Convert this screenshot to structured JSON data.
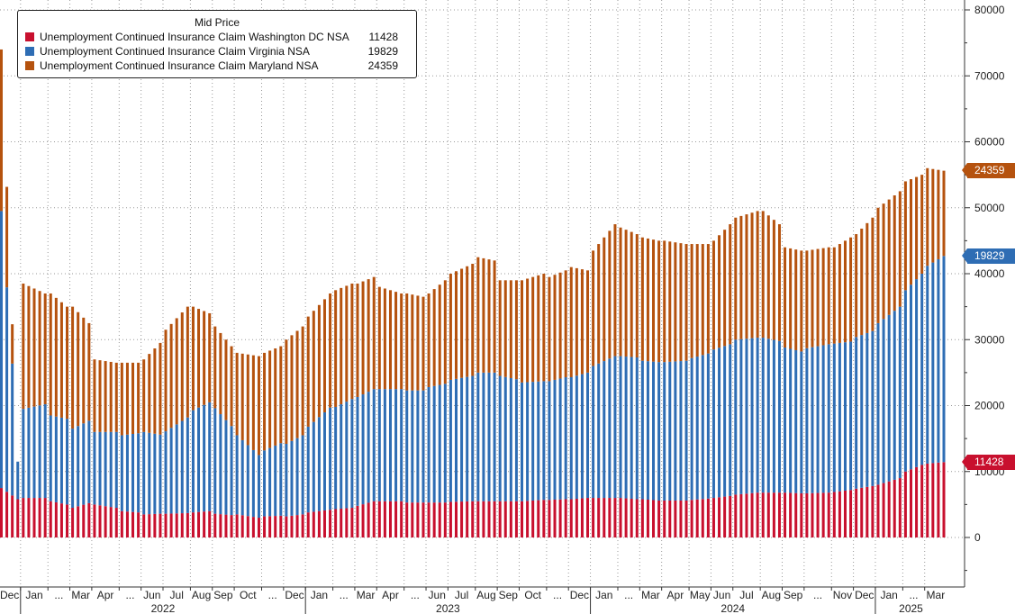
{
  "legend": {
    "title": "Mid Price",
    "entries": [
      {
        "label": "Unemployment Continued Insurance Claim Washington DC NSA",
        "value": "11428",
        "color": "#c8102e"
      },
      {
        "label": "Unemployment Continued Insurance Claim Virginia NSA",
        "value": "19829",
        "color": "#2e6db4"
      },
      {
        "label": "Unemployment Continued Insurance Claim Maryland NSA",
        "value": "24359",
        "color": "#b5520e"
      }
    ]
  },
  "chart_data": {
    "type": "bar",
    "stacked": true,
    "x_tick_labels": [
      "Dec",
      "Jan",
      "...",
      "Mar",
      "Apr",
      "...",
      "Jun",
      "Jul",
      "Aug",
      "Sep",
      "Oct",
      "...",
      "Dec",
      "Jan",
      "...",
      "Mar",
      "Apr",
      "...",
      "Jun",
      "Jul",
      "Aug",
      "Sep",
      "Oct",
      "...",
      "Dec",
      "Jan",
      "...",
      "Mar",
      "Apr",
      "May",
      "Jun",
      "Jul",
      "Aug",
      "Sep",
      "...",
      "Nov",
      "Dec",
      "Jan",
      "...",
      "Mar"
    ],
    "year_labels": [
      "2022",
      "2023",
      "2024",
      "2025"
    ],
    "y_ticks": [
      "80000",
      "70000",
      "60000",
      "50000",
      "40000",
      "30000",
      "20000",
      "10000",
      "0"
    ],
    "ylim": [
      -7000,
      81000
    ],
    "grid": true,
    "legend_position": "top-left",
    "y_axis_side": "right",
    "last_value_badges": [
      "24359",
      "19829",
      "11428"
    ],
    "months": [
      {
        "label": "Dec",
        "n": 4,
        "dc": [
          7500,
          5800
        ],
        "va": [
          42000,
          9000
        ],
        "total": [
          74000,
          11500
        ]
      },
      {
        "label": "Jan",
        "n": 5,
        "dc": [
          6000,
          6000
        ],
        "va": [
          13500,
          14200
        ],
        "total": [
          38500,
          37000
        ]
      },
      {
        "label": "Feb",
        "n": 4,
        "dc": [
          5500,
          5000
        ],
        "va": [
          13000,
          13000
        ],
        "total": [
          37000,
          35000
        ]
      },
      {
        "label": "Mar",
        "n": 4,
        "dc": [
          4500,
          5200
        ],
        "va": [
          12000,
          12500
        ],
        "total": [
          35000,
          32500
        ]
      },
      {
        "label": "Apr",
        "n": 5,
        "dc": [
          5000,
          4500
        ],
        "va": [
          11000,
          11500
        ],
        "total": [
          27000,
          26500
        ]
      },
      {
        "label": "May",
        "n": 4,
        "dc": [
          4000,
          3800
        ],
        "va": [
          11500,
          12000
        ],
        "total": [
          26500,
          26500
        ]
      },
      {
        "label": "Jun",
        "n": 4,
        "dc": [
          3500,
          3600
        ],
        "va": [
          12500,
          12000
        ],
        "total": [
          27000,
          29500
        ]
      },
      {
        "label": "Jul",
        "n": 5,
        "dc": [
          3600,
          3700
        ],
        "va": [
          12500,
          14500
        ],
        "total": [
          31500,
          35000
        ]
      },
      {
        "label": "Aug",
        "n": 4,
        "dc": [
          3800,
          4000
        ],
        "va": [
          15500,
          16500
        ],
        "total": [
          35000,
          34000
        ]
      },
      {
        "label": "Sep",
        "n": 4,
        "dc": [
          3600,
          3400
        ],
        "va": [
          16000,
          13500
        ],
        "total": [
          32000,
          29000
        ]
      },
      {
        "label": "Oct",
        "n": 5,
        "dc": [
          3500,
          3000
        ],
        "va": [
          12000,
          9500
        ],
        "total": [
          28000,
          27500
        ]
      },
      {
        "label": "Nov",
        "n": 4,
        "dc": [
          3200,
          3300
        ],
        "va": [
          10000,
          11000
        ],
        "total": [
          28000,
          29000
        ]
      },
      {
        "label": "Dec",
        "n": 4,
        "dc": [
          3200,
          3500
        ],
        "va": [
          11000,
          12000
        ],
        "total": [
          30000,
          32000
        ]
      },
      {
        "label": "Jan",
        "n": 5,
        "dc": [
          3800,
          4200
        ],
        "va": [
          13000,
          15500
        ],
        "total": [
          33500,
          37000
        ]
      },
      {
        "label": "Feb",
        "n": 4,
        "dc": [
          4300,
          4500
        ],
        "va": [
          15500,
          16500
        ],
        "total": [
          37500,
          38500
        ]
      },
      {
        "label": "Mar",
        "n": 4,
        "dc": [
          4800,
          5500
        ],
        "va": [
          16500,
          17000
        ],
        "total": [
          38500,
          39500
        ]
      },
      {
        "label": "Apr",
        "n": 5,
        "dc": [
          5500,
          5500
        ],
        "va": [
          17000,
          17000
        ],
        "total": [
          38000,
          37000
        ]
      },
      {
        "label": "May",
        "n": 4,
        "dc": [
          5300,
          5300
        ],
        "va": [
          17000,
          17000
        ],
        "total": [
          37000,
          36500
        ]
      },
      {
        "label": "Jun",
        "n": 4,
        "dc": [
          5300,
          5300
        ],
        "va": [
          17500,
          18000
        ],
        "total": [
          37000,
          39000
        ]
      },
      {
        "label": "Jul",
        "n": 5,
        "dc": [
          5400,
          5500
        ],
        "va": [
          18500,
          19000
        ],
        "total": [
          40000,
          41500
        ]
      },
      {
        "label": "Aug",
        "n": 4,
        "dc": [
          5500,
          5500
        ],
        "va": [
          19500,
          19500
        ],
        "total": [
          42500,
          42000
        ]
      },
      {
        "label": "Sep",
        "n": 4,
        "dc": [
          5500,
          5500
        ],
        "va": [
          19000,
          18500
        ],
        "total": [
          39000,
          39000
        ]
      },
      {
        "label": "Oct",
        "n": 5,
        "dc": [
          5500,
          5700
        ],
        "va": [
          18000,
          18000
        ],
        "total": [
          39000,
          40000
        ]
      },
      {
        "label": "Nov",
        "n": 4,
        "dc": [
          5700,
          5800
        ],
        "va": [
          18000,
          18500
        ],
        "total": [
          39500,
          40500
        ]
      },
      {
        "label": "Dec",
        "n": 4,
        "dc": [
          5800,
          6000
        ],
        "va": [
          18500,
          19000
        ],
        "total": [
          41000,
          40500
        ]
      },
      {
        "label": "Jan",
        "n": 5,
        "dc": [
          6000,
          6000
        ],
        "va": [
          20000,
          21500
        ],
        "total": [
          43500,
          47500
        ]
      },
      {
        "label": "Feb",
        "n": 4,
        "dc": [
          6000,
          5800
        ],
        "va": [
          21500,
          21500
        ],
        "total": [
          47000,
          46000
        ]
      },
      {
        "label": "Mar",
        "n": 4,
        "dc": [
          5800,
          5600
        ],
        "va": [
          21000,
          21000
        ],
        "total": [
          45500,
          45000
        ]
      },
      {
        "label": "Apr",
        "n": 5,
        "dc": [
          5600,
          5600
        ],
        "va": [
          21000,
          21200
        ],
        "total": [
          45000,
          44500
        ]
      },
      {
        "label": "May",
        "n": 4,
        "dc": [
          5700,
          5900
        ],
        "va": [
          21500,
          22000
        ],
        "total": [
          44500,
          44500
        ]
      },
      {
        "label": "Jun",
        "n": 4,
        "dc": [
          6000,
          6300
        ],
        "va": [
          22500,
          23000
        ],
        "total": [
          45000,
          47500
        ]
      },
      {
        "label": "Jul",
        "n": 5,
        "dc": [
          6500,
          6800
        ],
        "va": [
          23500,
          23500
        ],
        "total": [
          48500,
          49500
        ]
      },
      {
        "label": "Aug",
        "n": 4,
        "dc": [
          6800,
          6800
        ],
        "va": [
          23500,
          23000
        ],
        "total": [
          49500,
          47500
        ]
      },
      {
        "label": "Sep",
        "n": 4,
        "dc": [
          6800,
          6700
        ],
        "va": [
          22000,
          21500
        ],
        "total": [
          44000,
          43500
        ]
      },
      {
        "label": "Oct",
        "n": 5,
        "dc": [
          6700,
          6800
        ],
        "va": [
          22000,
          22500
        ],
        "total": [
          43500,
          44000
        ]
      },
      {
        "label": "Nov",
        "n": 4,
        "dc": [
          6900,
          7200
        ],
        "va": [
          22500,
          22500
        ],
        "total": [
          44000,
          45500
        ]
      },
      {
        "label": "Dec",
        "n": 4,
        "dc": [
          7400,
          7800
        ],
        "va": [
          23000,
          23500
        ],
        "total": [
          46000,
          48500
        ]
      },
      {
        "label": "Jan",
        "n": 5,
        "dc": [
          8000,
          9000
        ],
        "va": [
          24500,
          26000
        ],
        "total": [
          50000,
          52500
        ]
      },
      {
        "label": "Feb",
        "n": 4,
        "dc": [
          10000,
          11000
        ],
        "va": [
          27500,
          29000
        ],
        "total": [
          54000,
          55000
        ]
      },
      {
        "label": "Mar",
        "n": 4,
        "dc": [
          11200,
          11428
        ],
        "va": [
          30000,
          31257
        ],
        "total": [
          56000,
          55616
        ]
      }
    ]
  }
}
